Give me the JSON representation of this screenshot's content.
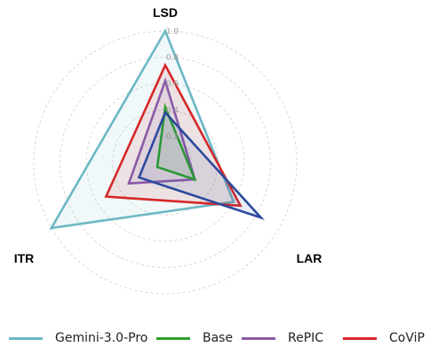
{
  "chart_data": {
    "type": "radar",
    "axes": [
      "LSD",
      "LAR",
      "ITR"
    ],
    "ticks": [
      "0.2",
      "0.4",
      "0.6",
      "0.8",
      "1.0"
    ],
    "range": [
      0,
      1
    ],
    "grid": true,
    "legend_position": "bottom",
    "series": [
      {
        "name": "Gemini-3.0-Pro",
        "color": "#6cb8c4",
        "values": [
          1.0,
          0.6,
          1.0
        ]
      },
      {
        "name": "Base",
        "color": "#2ca02c",
        "values": [
          0.42,
          0.26,
          0.07
        ]
      },
      {
        "name": "RePIC",
        "color": "#8a5aa8",
        "values": [
          0.62,
          0.26,
          0.32
        ]
      },
      {
        "name": "CoViP",
        "color": "#d62728",
        "values": [
          0.74,
          0.66,
          0.52
        ]
      },
      {
        "name": "",
        "color": "#2c4a9e",
        "values": [
          0.38,
          0.84,
          0.23
        ]
      }
    ]
  }
}
